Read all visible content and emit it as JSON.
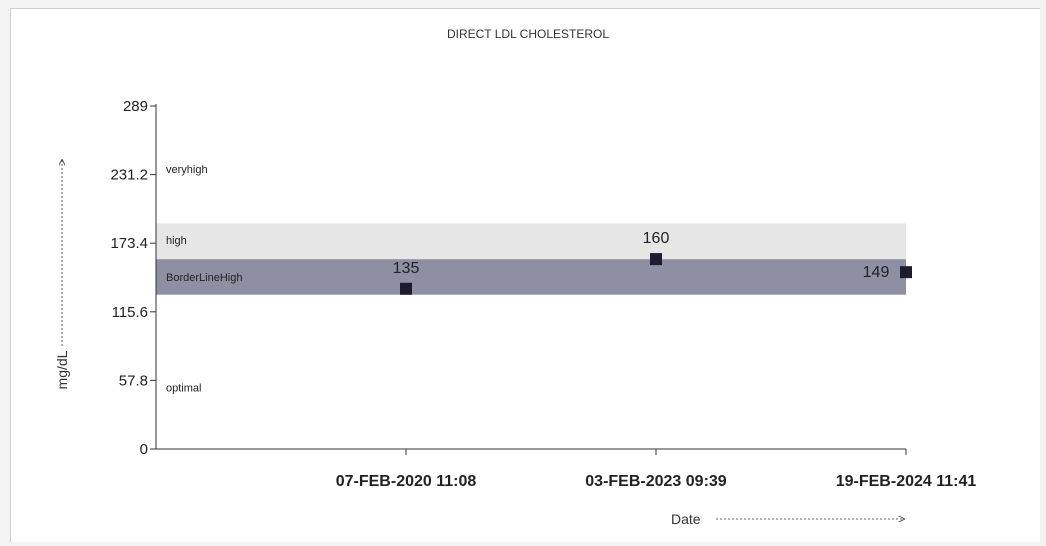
{
  "chart_data": {
    "type": "scatter",
    "title": "DIRECT LDL CHOLESTEROL",
    "xlabel": "Date",
    "ylabel": "mg/dL",
    "ylim": [
      0,
      289
    ],
    "yticks": [
      "0",
      "57.8",
      "115.6",
      "173.4",
      "231.2",
      "289"
    ],
    "ytick_values": [
      0,
      57.8,
      115.6,
      173.4,
      231.2,
      289
    ],
    "x": [
      "07-FEB-2020 11:08",
      "03-FEB-2023 09:39",
      "19-FEB-2024 11:41"
    ],
    "values": [
      135,
      160,
      149
    ],
    "value_labels": [
      "135",
      "160",
      "149"
    ],
    "reference_zones": [
      {
        "label": "optimal",
        "from": 0,
        "to": 130
      },
      {
        "label": "BorderLineHigh",
        "from": 130,
        "to": 160
      },
      {
        "label": "high",
        "from": 160,
        "to": 190
      },
      {
        "label": "veryhigh",
        "from": 190,
        "to": 289
      }
    ],
    "zone_label_values": {
      "veryhigh": 236,
      "high": 176,
      "BorderLineHigh": 145,
      "optimal": 52
    },
    "colors": {
      "borderline_band": "#8f8fa3",
      "high_band": "#e6e6e6",
      "marker": "#1c1c2e"
    },
    "grid": false,
    "legend": "none"
  }
}
